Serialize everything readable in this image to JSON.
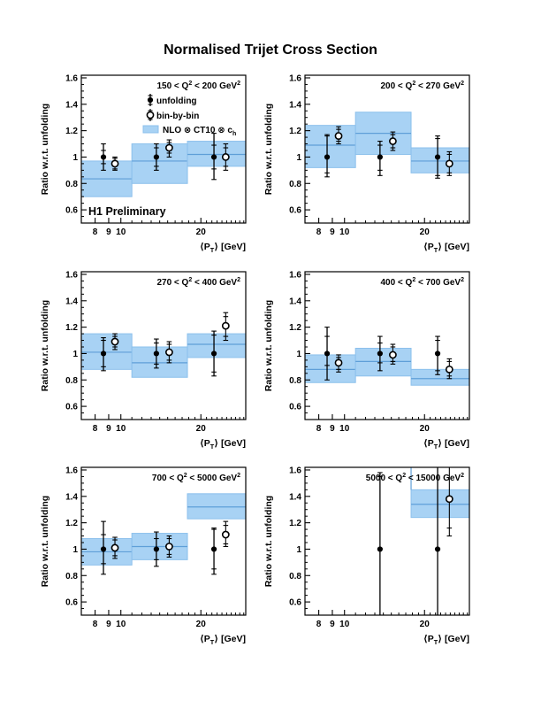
{
  "page": {
    "title": "Normalised Trijet Cross Section"
  },
  "chart_data": {
    "type": "scatter",
    "title": "Normalised Trijet Cross Section",
    "ylabel": "Ratio w.r.t. unfolding",
    "xlabel_pre": "⟨P",
    "xlabel_sub": "T",
    "xlabel_post": "⟩ [GeV]",
    "xscale": "log",
    "xlim": [
      7.1,
      29.5
    ],
    "ylim": [
      0.5,
      1.62
    ],
    "xticks": [
      {
        "v": 8,
        "label": "8"
      },
      {
        "v": 9,
        "label": "9"
      },
      {
        "v": 10,
        "label": "10"
      },
      {
        "v": 20,
        "label": "20"
      }
    ],
    "xticks_minor": [
      11,
      12,
      13,
      14,
      15,
      16,
      17,
      18,
      19,
      21,
      22,
      23,
      24,
      25,
      26,
      27,
      28,
      29
    ],
    "yticks": [
      {
        "v": 0.6,
        "label": "0.6"
      },
      {
        "v": 0.8,
        "label": "0.8"
      },
      {
        "v": 1.0,
        "label": "1"
      },
      {
        "v": 1.2,
        "label": "1.2"
      },
      {
        "v": 1.4,
        "label": "1.4"
      },
      {
        "v": 1.6,
        "label": "1.6"
      }
    ],
    "ytick_minor_step": 0.05,
    "colors": {
      "band_fill": "#a8d2f4",
      "band_edge": "#8cc0ec",
      "center_line": "#5f9fd8",
      "marker": "#000000",
      "frame": "#000000"
    },
    "legend": {
      "unfolding_label": "unfolding",
      "binbybin_label": "bin-by-bin",
      "nlo_label_pre": "NLO ⊗ CT10 ⊗ c",
      "nlo_label_sub": "h"
    },
    "watermark": "H1 Preliminary",
    "panels": [
      {
        "q2_min": "150",
        "q2_max": "200",
        "unit": "GeV",
        "bands": [
          {
            "x1": 7.1,
            "x2": 11.0,
            "lo": 0.7,
            "hi": 0.97,
            "center": 0.835
          },
          {
            "x1": 11.0,
            "x2": 17.8,
            "lo": 0.8,
            "hi": 1.1,
            "center": 0.97
          },
          {
            "x1": 17.8,
            "x2": 29.5,
            "lo": 0.93,
            "hi": 1.12,
            "center": 1.02
          }
        ],
        "unfolding": [
          {
            "x": 8.6,
            "y": 1.0,
            "inner": [
              0.95,
              1.05
            ],
            "outer": [
              0.9,
              1.1
            ]
          },
          {
            "x": 13.6,
            "y": 1.0,
            "inner": [
              0.93,
              1.07
            ],
            "outer": [
              0.9,
              1.1
            ]
          },
          {
            "x": 22.4,
            "y": 1.0,
            "inner": [
              0.91,
              1.09
            ],
            "outer": [
              0.83,
              1.18
            ]
          }
        ],
        "binbybin": [
          {
            "x": 9.5,
            "y": 0.95,
            "inner": [
              0.91,
              0.99
            ],
            "outer": [
              0.9,
              1.0
            ]
          },
          {
            "x": 15.2,
            "y": 1.07,
            "inner": [
              1.03,
              1.11
            ],
            "outer": [
              1.0,
              1.13
            ]
          },
          {
            "x": 24.8,
            "y": 1.0,
            "inner": [
              0.93,
              1.07
            ],
            "outer": [
              0.9,
              1.1
            ]
          }
        ]
      },
      {
        "q2_min": "200",
        "q2_max": "270",
        "unit": "GeV",
        "bands": [
          {
            "x1": 7.1,
            "x2": 11.0,
            "lo": 0.92,
            "hi": 1.24,
            "center": 1.09
          },
          {
            "x1": 11.0,
            "x2": 17.8,
            "lo": 1.02,
            "hi": 1.34,
            "center": 1.18
          },
          {
            "x1": 17.8,
            "x2": 29.5,
            "lo": 0.88,
            "hi": 1.07,
            "center": 0.97
          }
        ],
        "unfolding": [
          {
            "x": 8.6,
            "y": 1.0,
            "inner": [
              0.88,
              1.16
            ],
            "outer": [
              0.85,
              1.17
            ]
          },
          {
            "x": 13.6,
            "y": 1.0,
            "inner": [
              0.9,
              1.09
            ],
            "outer": [
              0.86,
              1.12
            ]
          },
          {
            "x": 22.4,
            "y": 1.0,
            "inner": [
              0.86,
              1.14
            ],
            "outer": [
              0.84,
              1.16
            ]
          }
        ],
        "binbybin": [
          {
            "x": 9.5,
            "y": 1.16,
            "inner": [
              1.12,
              1.21
            ],
            "outer": [
              1.1,
              1.23
            ]
          },
          {
            "x": 15.2,
            "y": 1.12,
            "inner": [
              1.07,
              1.17
            ],
            "outer": [
              1.05,
              1.19
            ]
          },
          {
            "x": 24.8,
            "y": 0.95,
            "inner": [
              0.88,
              1.02
            ],
            "outer": [
              0.86,
              1.04
            ]
          }
        ]
      },
      {
        "q2_min": "270",
        "q2_max": "400",
        "unit": "GeV",
        "bands": [
          {
            "x1": 7.1,
            "x2": 11.0,
            "lo": 0.88,
            "hi": 1.15,
            "center": 1.01
          },
          {
            "x1": 11.0,
            "x2": 17.8,
            "lo": 0.82,
            "hi": 1.05,
            "center": 0.93
          },
          {
            "x1": 17.8,
            "x2": 29.5,
            "lo": 0.97,
            "hi": 1.15,
            "center": 1.07
          }
        ],
        "unfolding": [
          {
            "x": 8.6,
            "y": 1.0,
            "inner": [
              0.9,
              1.1
            ],
            "outer": [
              0.87,
              1.12
            ]
          },
          {
            "x": 13.6,
            "y": 1.0,
            "inner": [
              0.92,
              1.08
            ],
            "outer": [
              0.89,
              1.11
            ]
          },
          {
            "x": 22.4,
            "y": 1.0,
            "inner": [
              0.86,
              1.14
            ],
            "outer": [
              0.83,
              1.17
            ]
          }
        ],
        "binbybin": [
          {
            "x": 9.5,
            "y": 1.09,
            "inner": [
              1.05,
              1.13
            ],
            "outer": [
              1.03,
              1.15
            ]
          },
          {
            "x": 15.2,
            "y": 1.01,
            "inner": [
              0.95,
              1.07
            ],
            "outer": [
              0.93,
              1.09
            ]
          },
          {
            "x": 24.8,
            "y": 1.21,
            "inner": [
              1.13,
              1.28
            ],
            "outer": [
              1.1,
              1.31
            ]
          }
        ]
      },
      {
        "q2_min": "400",
        "q2_max": "700",
        "unit": "GeV",
        "bands": [
          {
            "x1": 7.1,
            "x2": 11.0,
            "lo": 0.78,
            "hi": 0.99,
            "center": 0.88
          },
          {
            "x1": 11.0,
            "x2": 17.8,
            "lo": 0.83,
            "hi": 1.04,
            "center": 0.94
          },
          {
            "x1": 17.8,
            "x2": 29.5,
            "lo": 0.76,
            "hi": 0.88,
            "center": 0.81
          }
        ],
        "unfolding": [
          {
            "x": 8.6,
            "y": 1.0,
            "inner": [
              0.91,
              1.13
            ],
            "outer": [
              0.8,
              1.2
            ]
          },
          {
            "x": 13.6,
            "y": 1.0,
            "inner": [
              0.93,
              1.08
            ],
            "outer": [
              0.87,
              1.13
            ]
          },
          {
            "x": 22.4,
            "y": 1.0,
            "inner": [
              0.87,
              1.1
            ],
            "outer": [
              0.84,
              1.13
            ]
          }
        ],
        "binbybin": [
          {
            "x": 9.5,
            "y": 0.93,
            "inner": [
              0.88,
              0.97
            ],
            "outer": [
              0.86,
              0.99
            ]
          },
          {
            "x": 15.2,
            "y": 0.99,
            "inner": [
              0.94,
              1.05
            ],
            "outer": [
              0.92,
              1.07
            ]
          },
          {
            "x": 24.8,
            "y": 0.88,
            "inner": [
              0.83,
              0.94
            ],
            "outer": [
              0.81,
              0.96
            ]
          }
        ]
      },
      {
        "q2_min": "700",
        "q2_max": "5000",
        "unit": "GeV",
        "bands": [
          {
            "x1": 7.1,
            "x2": 11.0,
            "lo": 0.88,
            "hi": 1.08,
            "center": 0.98
          },
          {
            "x1": 11.0,
            "x2": 17.8,
            "lo": 0.92,
            "hi": 1.12,
            "center": 1.02
          },
          {
            "x1": 17.8,
            "x2": 29.5,
            "lo": 1.23,
            "hi": 1.42,
            "center": 1.32
          }
        ],
        "unfolding": [
          {
            "x": 8.6,
            "y": 1.0,
            "inner": [
              0.89,
              1.11
            ],
            "outer": [
              0.81,
              1.21
            ]
          },
          {
            "x": 13.6,
            "y": 1.0,
            "inner": [
              0.92,
              1.08
            ],
            "outer": [
              0.87,
              1.13
            ]
          },
          {
            "x": 22.4,
            "y": 1.0,
            "inner": [
              0.85,
              1.15
            ],
            "outer": [
              0.81,
              1.16
            ]
          }
        ],
        "binbybin": [
          {
            "x": 9.5,
            "y": 1.01,
            "inner": [
              0.95,
              1.07
            ],
            "outer": [
              0.93,
              1.09
            ]
          },
          {
            "x": 15.2,
            "y": 1.02,
            "inner": [
              0.96,
              1.08
            ],
            "outer": [
              0.94,
              1.1
            ]
          },
          {
            "x": 24.8,
            "y": 1.11,
            "inner": [
              1.04,
              1.18
            ],
            "outer": [
              1.02,
              1.21
            ]
          }
        ]
      },
      {
        "q2_min": "5000",
        "q2_max": "15000",
        "unit": "GeV",
        "bands": [
          {
            "x1": 17.8,
            "x2": 29.5,
            "lo": 1.24,
            "hi": 1.45,
            "center": 1.34,
            "edge_to_top": true
          }
        ],
        "unfolding": [
          {
            "x": 13.6,
            "y": 1.0,
            "inner": [
              0.3,
              1.55
            ],
            "outer": [
              0.3,
              1.58
            ]
          },
          {
            "x": 22.4,
            "y": 1.0,
            "inner": [
              0.2,
              1.8
            ],
            "outer": [
              0.2,
              1.8
            ]
          }
        ],
        "binbybin": [
          {
            "x": 24.8,
            "y": 1.38,
            "inner": [
              1.16,
              1.7
            ],
            "outer": [
              1.1,
              1.75
            ]
          }
        ]
      }
    ]
  }
}
